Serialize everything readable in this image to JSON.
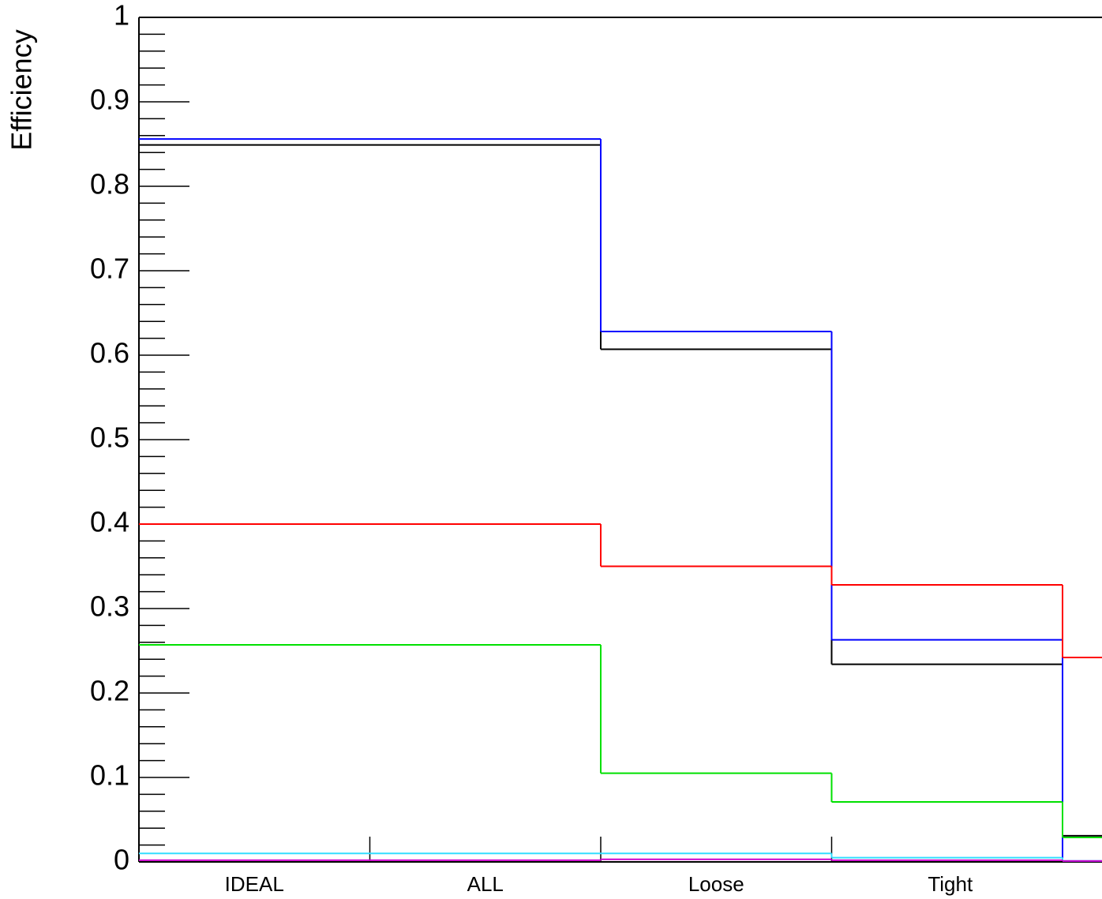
{
  "chart_data": {
    "type": "step",
    "y_label": "Efficiency",
    "categories": [
      "IDEAL",
      "ALL",
      "Loose",
      "Tight",
      null
    ],
    "series": [
      {
        "color": "#000000",
        "values": [
          0.849,
          0.849,
          0.607,
          0.234,
          0.031
        ]
      },
      {
        "color": "#0000ff",
        "values": [
          0.856,
          0.856,
          0.628,
          0.263,
          0.001
        ]
      },
      {
        "color": "#ff0000",
        "values": [
          0.4,
          0.4,
          0.35,
          0.328,
          0.242
        ]
      },
      {
        "color": "#00e000",
        "values": [
          0.257,
          0.257,
          0.105,
          0.071,
          0.029
        ]
      },
      {
        "color": "#33ddff",
        "values": [
          0.01,
          0.01,
          0.01,
          0.005,
          0.001
        ]
      },
      {
        "color": "#cc00cc",
        "values": [
          0.002,
          0.002,
          0.003,
          0.002,
          0.001
        ]
      }
    ],
    "ylim": [
      0,
      1
    ],
    "yticks": [
      0,
      0.1,
      0.2,
      0.3,
      0.4,
      0.5,
      0.6,
      0.7,
      0.8,
      0.9,
      1
    ]
  }
}
